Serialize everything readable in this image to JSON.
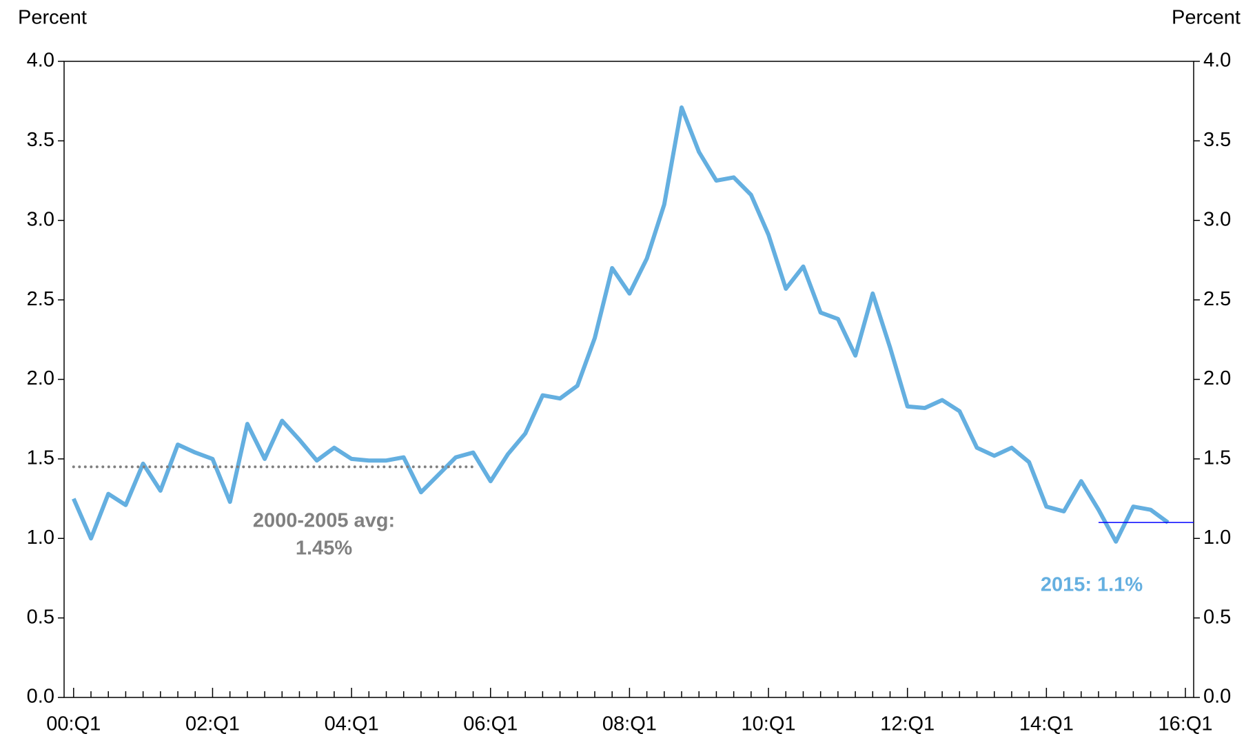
{
  "chart_data": {
    "type": "line",
    "y_axis_label": "Percent",
    "y2_axis_label": "Percent",
    "categories": [
      "00:Q1",
      null,
      null,
      null,
      null,
      null,
      null,
      null,
      "02:Q1",
      null,
      null,
      null,
      null,
      null,
      null,
      null,
      "04:Q1",
      null,
      null,
      null,
      null,
      null,
      null,
      null,
      "06:Q1",
      null,
      null,
      null,
      null,
      null,
      null,
      null,
      "08:Q1",
      null,
      null,
      null,
      null,
      null,
      null,
      null,
      "10:Q1",
      null,
      null,
      null,
      null,
      null,
      null,
      null,
      "12:Q1",
      null,
      null,
      null,
      null,
      null,
      null,
      null,
      "14:Q1",
      null,
      null,
      null,
      null,
      null,
      null,
      null,
      "16:Q1"
    ],
    "series": [
      {
        "color": "#64afe0",
        "values": [
          1.25,
          1.0,
          1.28,
          1.21,
          1.47,
          1.3,
          1.59,
          1.54,
          1.5,
          1.23,
          1.72,
          1.5,
          1.74,
          1.62,
          1.49,
          1.57,
          1.5,
          1.49,
          1.49,
          1.51,
          1.29,
          1.4,
          1.51,
          1.54,
          1.36,
          1.53,
          1.66,
          1.9,
          1.88,
          1.96,
          2.26,
          2.7,
          2.54,
          2.76,
          3.1,
          3.71,
          3.43,
          3.25,
          3.27,
          3.16,
          2.91,
          2.57,
          2.71,
          2.42,
          2.38,
          2.15,
          2.54,
          2.2,
          1.83,
          1.82,
          1.87,
          1.8,
          1.57,
          1.52,
          1.57,
          1.48,
          1.2,
          1.17,
          1.36,
          1.18,
          0.98,
          1.2,
          1.18,
          1.1,
          null
        ]
      }
    ],
    "reference_lines": [
      {
        "value": 1.45,
        "from": 0,
        "to": 23,
        "color": "#808080",
        "style": "dotted",
        "label": [
          "2000-2005 avg:",
          "1.45%"
        ]
      },
      {
        "value": 1.1,
        "from": 59,
        "to": 64.5,
        "color": "#0000ff",
        "style": "solid",
        "label": [
          "2015: 1.1%"
        ],
        "label_color": "#64afe0"
      }
    ],
    "ylim": [
      0,
      4
    ],
    "yticks": [
      {
        "value": 0,
        "label": "0.0"
      },
      {
        "value": 0.5,
        "label": "0.5"
      },
      {
        "value": 1,
        "label": "1.0"
      },
      {
        "value": 1.5,
        "label": "1.5"
      },
      {
        "value": 2,
        "label": "2.0"
      },
      {
        "value": 2.5,
        "label": "2.5"
      },
      {
        "value": 3,
        "label": "3.0"
      },
      {
        "value": 3.5,
        "label": "3.5"
      },
      {
        "value": 4,
        "label": "4.0"
      }
    ],
    "y2lim": [
      0,
      4
    ],
    "y2ticks": [
      {
        "value": 0,
        "label": "0.0"
      },
      {
        "value": 0.5,
        "label": "0.5"
      },
      {
        "value": 1,
        "label": "1.0"
      },
      {
        "value": 1.5,
        "label": "1.5"
      },
      {
        "value": 2,
        "label": "2.0"
      },
      {
        "value": 2.5,
        "label": "2.5"
      },
      {
        "value": 3,
        "label": "3.0"
      },
      {
        "value": 3.5,
        "label": "3.5"
      },
      {
        "value": 4,
        "label": "4.0"
      }
    ],
    "grid": false
  }
}
